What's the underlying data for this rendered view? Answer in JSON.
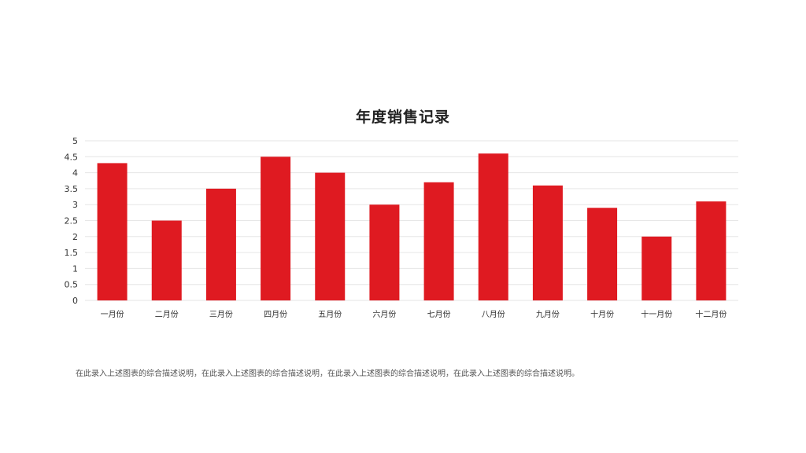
{
  "chart_data": {
    "type": "bar",
    "title": "年度销售记录",
    "xlabel": "",
    "ylabel": "",
    "categories": [
      "一月份",
      "二月份",
      "三月份",
      "四月份",
      "五月份",
      "六月份",
      "七月份",
      "八月份",
      "九月份",
      "十月份",
      "十一月份",
      "十二月份"
    ],
    "values": [
      4.3,
      2.5,
      3.5,
      4.5,
      4.0,
      3.0,
      3.7,
      4.6,
      3.6,
      2.9,
      2.0,
      3.1
    ],
    "ylim": [
      0,
      5
    ],
    "yticks": [
      "0",
      "0.5",
      "1",
      "1.5",
      "2",
      "2.5",
      "3",
      "3.5",
      "4",
      "4.5",
      "5"
    ],
    "grid": true,
    "bar_color": "#df1a21",
    "grid_color": "#e6e6e6"
  },
  "description": "在此录入上述图表的综合描述说明，在此录入上述图表的综合描述说明，在此录入上述图表的综合描述说明，在此录入上述图表的综合描述说明。"
}
